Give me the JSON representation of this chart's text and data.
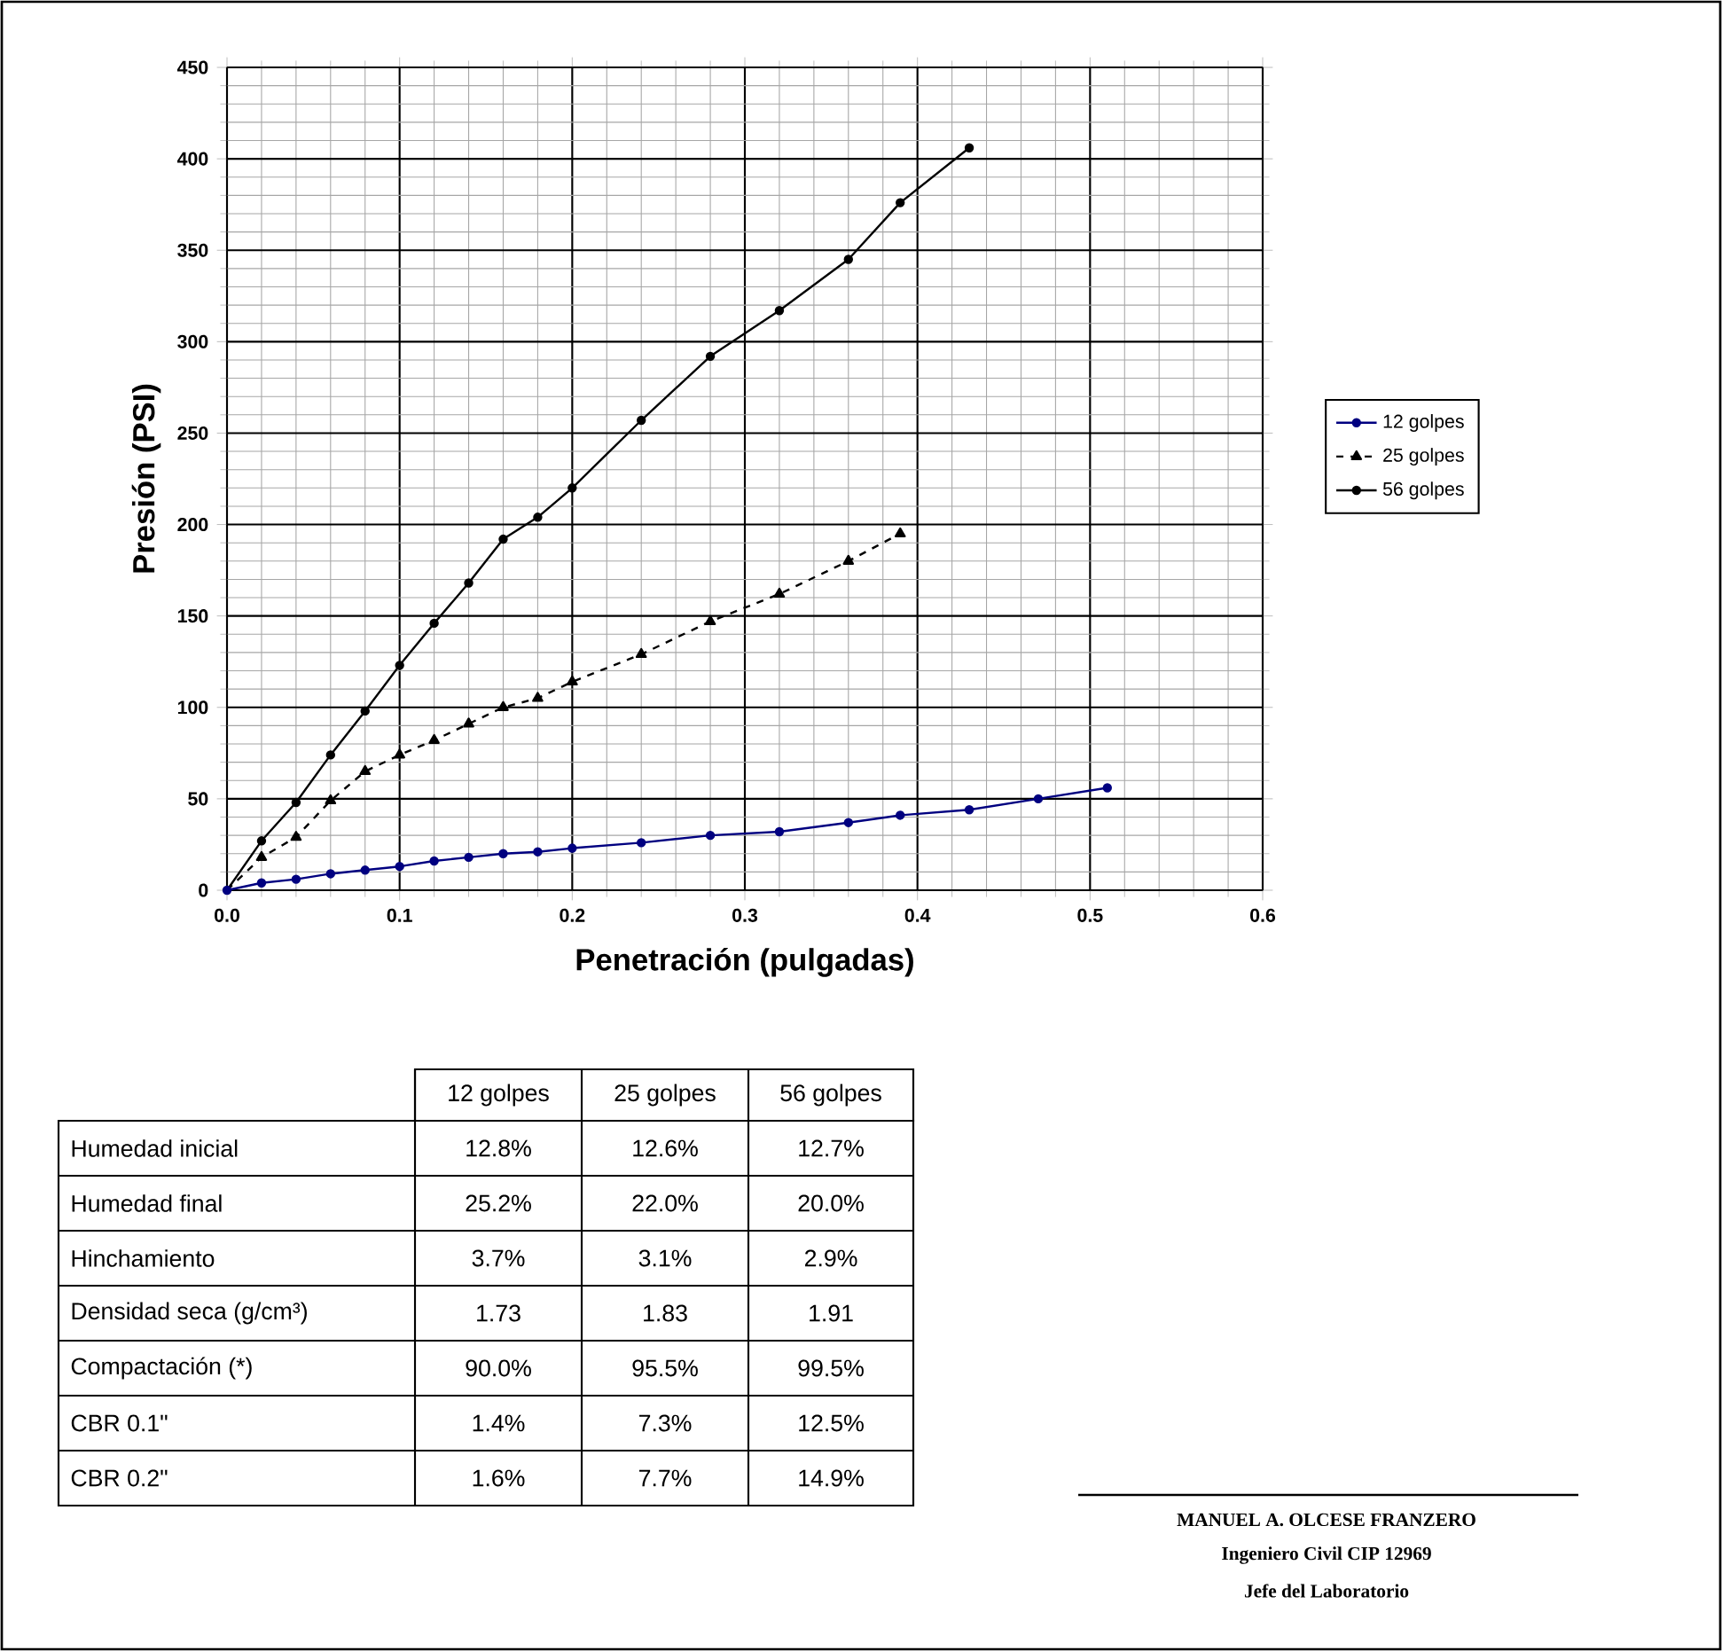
{
  "chart_data": {
    "type": "line",
    "xlabel": "Penetración (pulgadas)",
    "ylabel": "Presión (PSI)",
    "xlim": [
      0,
      0.6
    ],
    "ylim": [
      0,
      450
    ],
    "xticks": [
      {
        "value": 0,
        "label": "0.0"
      },
      {
        "value": 0.1,
        "label": "0.1"
      },
      {
        "value": 0.2,
        "label": "0.2"
      },
      {
        "value": 0.3,
        "label": "0.3"
      },
      {
        "value": 0.4,
        "label": "0.4"
      },
      {
        "value": 0.5,
        "label": "0.5"
      },
      {
        "value": 0.6,
        "label": "0.6"
      }
    ],
    "yticks": [
      0,
      50,
      100,
      150,
      200,
      250,
      300,
      350,
      400,
      450
    ],
    "grid": true,
    "legend": "right",
    "marker": "circle",
    "line_style": "solid",
    "series": [
      {
        "name": "12 golpes",
        "color": "#000080",
        "x": [
          0,
          0.02,
          0.04,
          0.06,
          0.08,
          0.1,
          0.12,
          0.14,
          0.16,
          0.18,
          0.2,
          0.24,
          0.28,
          0.32,
          0.36,
          0.39,
          0.43,
          0.47,
          0.51
        ],
        "values": [
          0,
          4,
          6,
          9,
          11,
          13,
          16,
          18,
          20,
          21,
          23,
          26,
          30,
          32,
          37,
          41,
          44,
          50,
          56
        ]
      },
      {
        "name": "25 golpes",
        "color": "#000000",
        "line_style": "dashed",
        "marker": "triangle",
        "x": [
          0,
          0.02,
          0.04,
          0.06,
          0.08,
          0.1,
          0.12,
          0.14,
          0.16,
          0.18,
          0.2,
          0.24,
          0.28,
          0.32,
          0.36,
          0.39
        ],
        "values": [
          0,
          18,
          29,
          49,
          65,
          74,
          82,
          91,
          100,
          105,
          114,
          129,
          147,
          162,
          180,
          195
        ]
      },
      {
        "name": "56 golpes",
        "color": "#000000",
        "x": [
          0,
          0.02,
          0.04,
          0.06,
          0.08,
          0.1,
          0.12,
          0.14,
          0.16,
          0.18,
          0.2,
          0.24,
          0.28,
          0.32,
          0.36,
          0.39,
          0.43
        ],
        "values": [
          0,
          27,
          48,
          74,
          98,
          123,
          146,
          168,
          192,
          204,
          220,
          257,
          292,
          317,
          345,
          376,
          406
        ]
      }
    ],
    "annotations": [
      "12 golpes",
      "25 golpes",
      "56 golpes",
      "Humedad inicial",
      "12.8%",
      "12.6%",
      "12.7%",
      "Humedad final",
      "25.2%",
      "22.0%",
      "20.0%",
      "Hinchamiento",
      "3.7%",
      "3.1%",
      "2.9%",
      "Densidad seca (g/cm³)",
      "1.73",
      "1.83",
      "1.91",
      "Compactación (*)",
      "90.0%",
      "95.5%",
      "99.5%",
      "CBR 0.1\"",
      "1.4%",
      "7.3%",
      "12.5%",
      "CBR 0.2\"",
      "1.6%",
      "7.7%",
      "14.9%",
      "MANUEL A. OLCESE FRANZERO",
      "Ingeniero Civil CIP 12969",
      "Jefe del Laboratorio"
    ]
  }
}
